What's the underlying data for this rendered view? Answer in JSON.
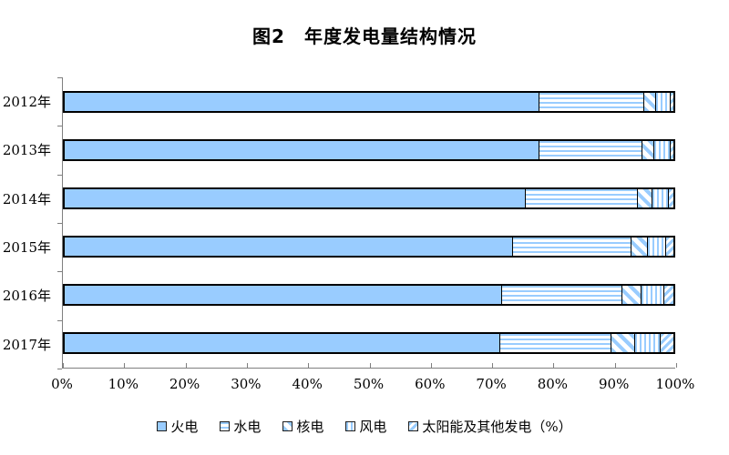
{
  "page": {
    "background": "#ffffff"
  },
  "chart_data": {
    "type": "bar",
    "orientation": "horizontal-stacked",
    "title": "图2　年度发电量结构情况",
    "categories": [
      "2012年",
      "2013年",
      "2014年",
      "2015年",
      "2016年",
      "2017年"
    ],
    "series": [
      {
        "name": "火电",
        "pattern": "solid",
        "values": [
          78.0,
          78.0,
          75.8,
          73.7,
          71.8,
          71.5
        ]
      },
      {
        "name": "水电",
        "pattern": "hlines",
        "values": [
          17.2,
          16.9,
          18.4,
          19.4,
          19.8,
          18.3
        ]
      },
      {
        "name": "核电",
        "pattern": "diag-down",
        "values": [
          1.9,
          2.0,
          2.3,
          2.7,
          3.1,
          3.9
        ]
      },
      {
        "name": "风电",
        "pattern": "vlines",
        "values": [
          2.5,
          2.7,
          2.8,
          3.0,
          3.8,
          4.2
        ]
      },
      {
        "name": "太阳能及其他发电（%）",
        "pattern": "diag-up",
        "values": [
          0.4,
          0.4,
          0.7,
          1.2,
          1.5,
          2.1
        ]
      }
    ],
    "xlim": [
      0,
      100
    ],
    "xticks": [
      "0%",
      "10%",
      "20%",
      "30%",
      "40%",
      "50%",
      "60%",
      "70%",
      "80%",
      "90%",
      "100%"
    ],
    "grid": "off",
    "legend_position": "bottom",
    "colors": {
      "bar_fill": "#99CCFF",
      "bar_border": "#000000",
      "axis": "#7f7f7f",
      "text": "#000000",
      "background": "#ffffff"
    }
  }
}
